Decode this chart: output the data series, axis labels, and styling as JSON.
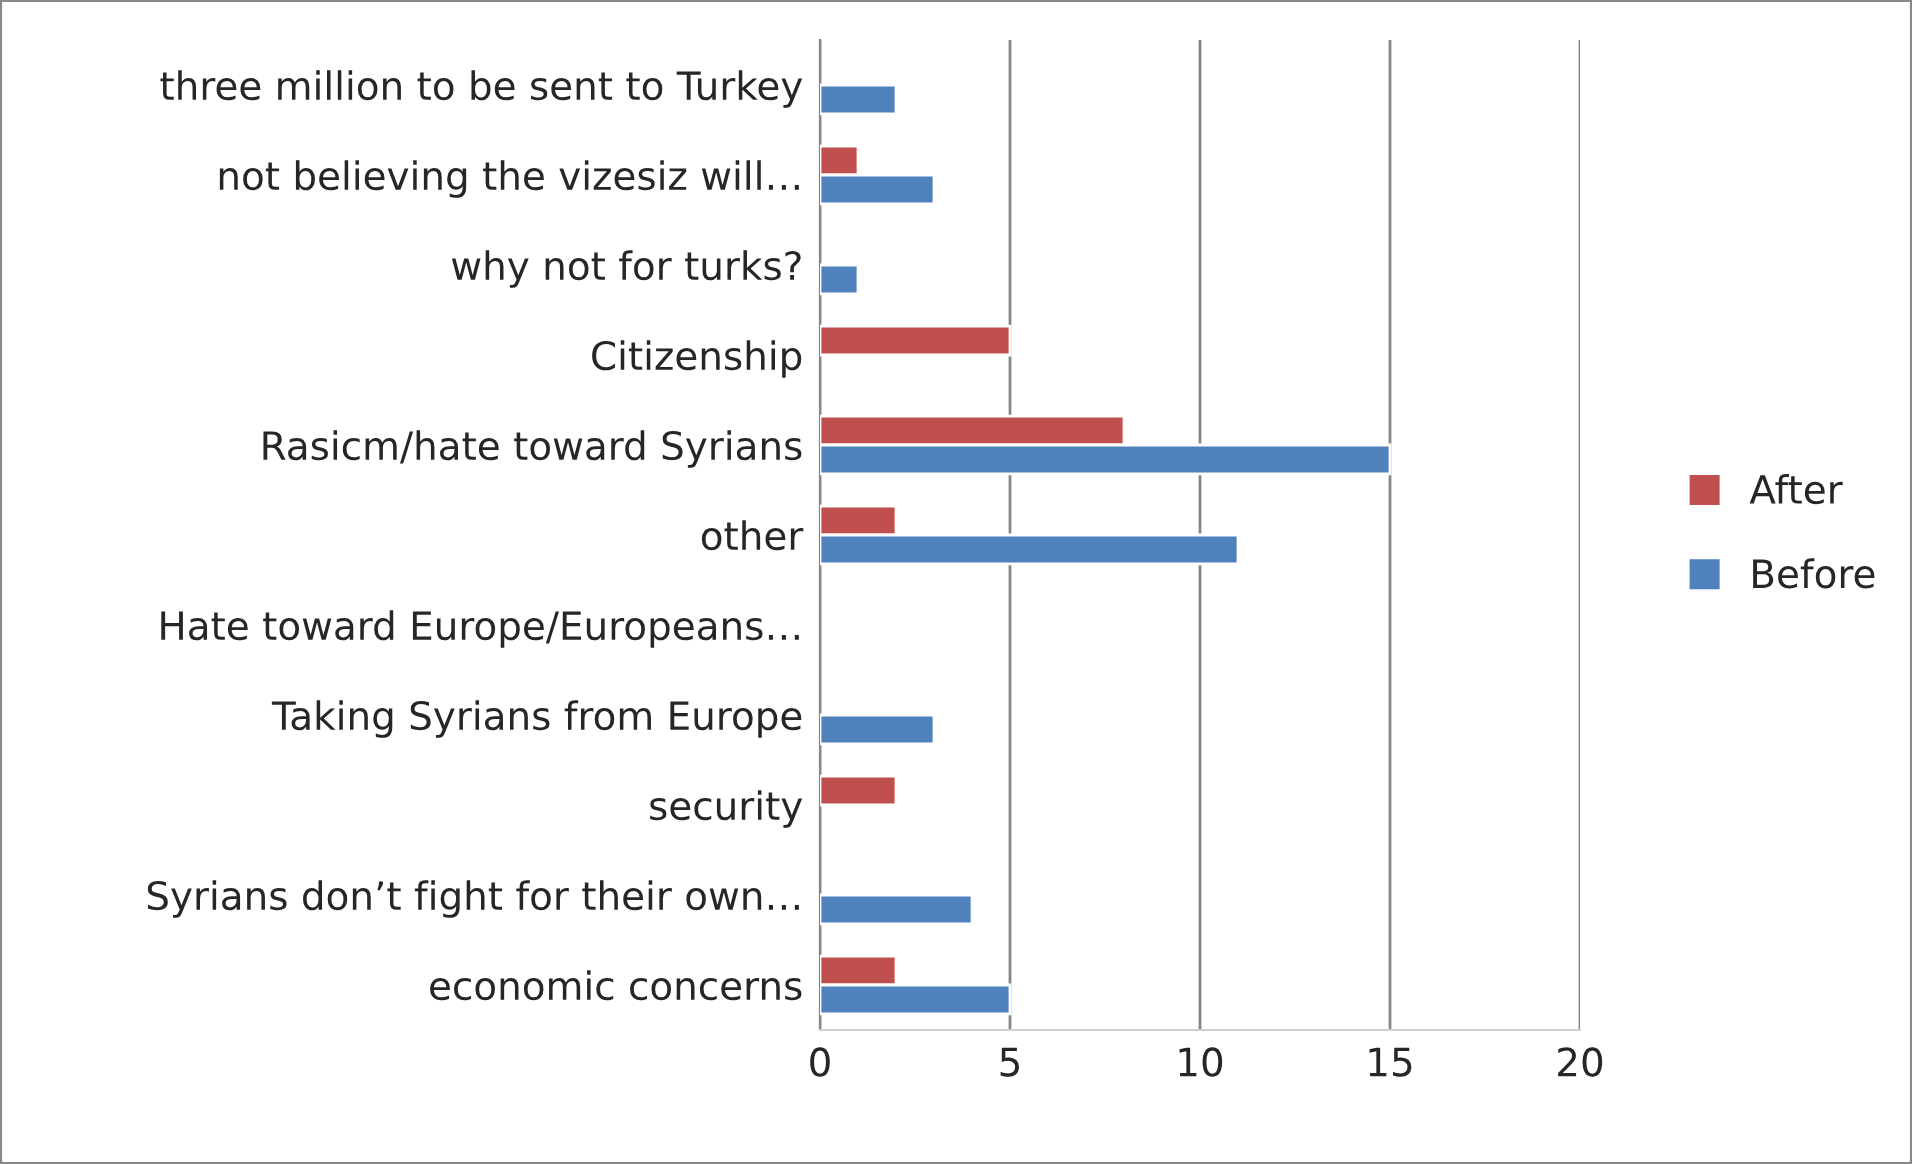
{
  "chart_data": {
    "type": "bar",
    "orientation": "horizontal",
    "categories": [
      "three million to be sent to Turkey",
      "not believing the vizesiz will…",
      "why not for turks?",
      "Citizenship",
      "Rasicm/hate toward Syrians",
      "other",
      "Hate toward Europe/Europeans…",
      "Taking Syrians from Europe",
      "security",
      "Syrians don’t fight for their own…",
      "economic concerns"
    ],
    "series": [
      {
        "name": "After",
        "color": "#c0504d",
        "values": [
          null,
          1,
          null,
          5,
          8,
          2,
          null,
          null,
          2,
          null,
          2
        ]
      },
      {
        "name": "Before",
        "color": "#4f81bd",
        "values": [
          2,
          3,
          1,
          null,
          15,
          11,
          null,
          3,
          null,
          4,
          5
        ]
      }
    ],
    "xlim": [
      0,
      20
    ],
    "xticks": [
      0,
      5,
      10,
      15,
      20
    ],
    "grid": "x",
    "legend": "right"
  }
}
